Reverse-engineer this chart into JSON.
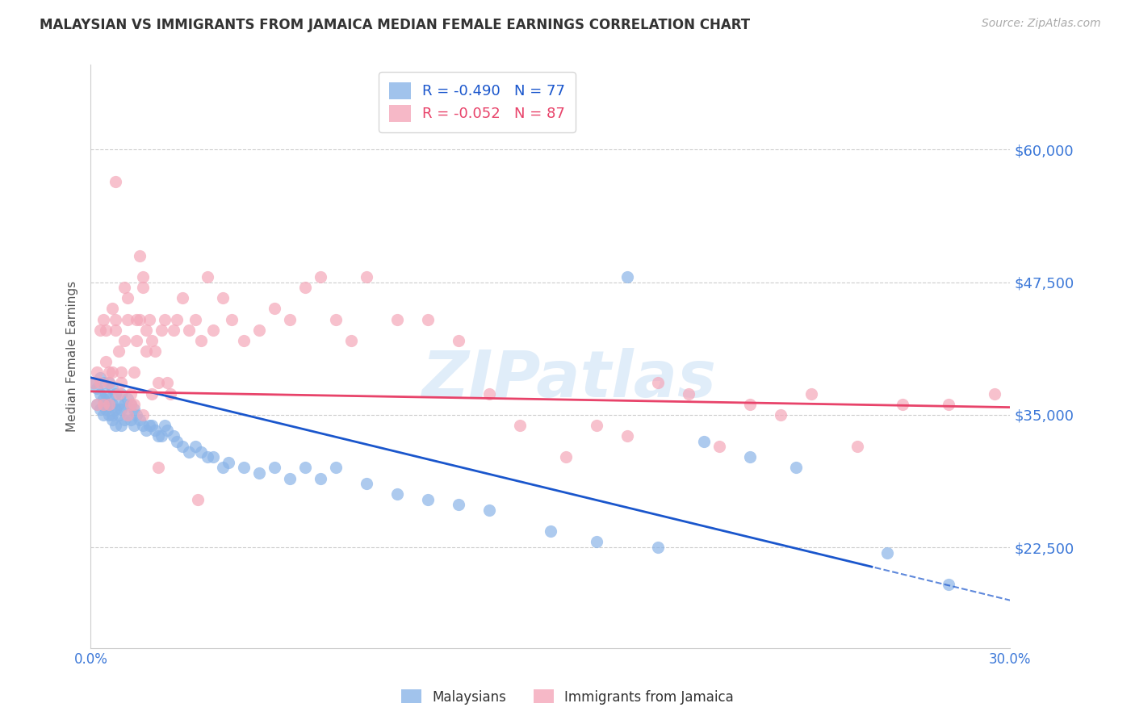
{
  "title": "MALAYSIAN VS IMMIGRANTS FROM JAMAICA MEDIAN FEMALE EARNINGS CORRELATION CHART",
  "source": "Source: ZipAtlas.com",
  "ylabel": "Median Female Earnings",
  "xlim": [
    0.0,
    0.3
  ],
  "ylim": [
    13000,
    68000
  ],
  "yticks": [
    22500,
    35000,
    47500,
    60000
  ],
  "ytick_labels": [
    "$22,500",
    "$35,000",
    "$47,500",
    "$60,000"
  ],
  "blue_color": "#8ab4e8",
  "pink_color": "#f4a7b9",
  "blue_line_color": "#1a56cc",
  "pink_line_color": "#e8436a",
  "axis_label_color": "#3c78d8",
  "tick_label_color": "#3c78d8",
  "legend_blue_R": "R = -0.490",
  "legend_blue_N": "N = 77",
  "legend_pink_R": "R = -0.052",
  "legend_pink_N": "N = 87",
  "blue_scatter_x": [
    0.001,
    0.002,
    0.002,
    0.003,
    0.003,
    0.003,
    0.004,
    0.004,
    0.004,
    0.005,
    0.005,
    0.005,
    0.006,
    0.006,
    0.006,
    0.007,
    0.007,
    0.007,
    0.007,
    0.008,
    0.008,
    0.008,
    0.009,
    0.009,
    0.01,
    0.01,
    0.01,
    0.011,
    0.011,
    0.012,
    0.012,
    0.013,
    0.013,
    0.014,
    0.014,
    0.015,
    0.016,
    0.017,
    0.018,
    0.019,
    0.02,
    0.021,
    0.022,
    0.023,
    0.024,
    0.025,
    0.027,
    0.028,
    0.03,
    0.032,
    0.034,
    0.036,
    0.038,
    0.04,
    0.043,
    0.045,
    0.05,
    0.055,
    0.06,
    0.065,
    0.07,
    0.075,
    0.08,
    0.09,
    0.1,
    0.11,
    0.12,
    0.13,
    0.15,
    0.165,
    0.185,
    0.2,
    0.215,
    0.23,
    0.26,
    0.175,
    0.28
  ],
  "blue_scatter_y": [
    38000,
    37500,
    36000,
    38500,
    37000,
    35500,
    36500,
    35000,
    38000,
    37000,
    36000,
    35500,
    38000,
    36500,
    35000,
    37500,
    36000,
    35000,
    34500,
    37000,
    35500,
    34000,
    36000,
    35000,
    37000,
    35500,
    34000,
    36000,
    34500,
    36500,
    35000,
    36000,
    34500,
    35500,
    34000,
    35000,
    34500,
    34000,
    33500,
    34000,
    34000,
    33500,
    33000,
    33000,
    34000,
    33500,
    33000,
    32500,
    32000,
    31500,
    32000,
    31500,
    31000,
    31000,
    30000,
    30500,
    30000,
    29500,
    30000,
    29000,
    30000,
    29000,
    30000,
    28500,
    27500,
    27000,
    26500,
    26000,
    24000,
    23000,
    22500,
    32500,
    31000,
    30000,
    22000,
    48000,
    19000
  ],
  "pink_scatter_x": [
    0.001,
    0.002,
    0.002,
    0.003,
    0.003,
    0.004,
    0.004,
    0.005,
    0.005,
    0.006,
    0.006,
    0.006,
    0.007,
    0.007,
    0.008,
    0.008,
    0.009,
    0.009,
    0.01,
    0.01,
    0.011,
    0.011,
    0.012,
    0.012,
    0.013,
    0.013,
    0.014,
    0.014,
    0.015,
    0.015,
    0.016,
    0.016,
    0.017,
    0.017,
    0.018,
    0.018,
    0.019,
    0.02,
    0.021,
    0.022,
    0.023,
    0.024,
    0.025,
    0.026,
    0.027,
    0.028,
    0.03,
    0.032,
    0.034,
    0.036,
    0.038,
    0.04,
    0.043,
    0.046,
    0.05,
    0.055,
    0.06,
    0.065,
    0.07,
    0.075,
    0.08,
    0.085,
    0.09,
    0.1,
    0.11,
    0.12,
    0.13,
    0.14,
    0.155,
    0.165,
    0.175,
    0.185,
    0.195,
    0.205,
    0.215,
    0.225,
    0.235,
    0.25,
    0.265,
    0.28,
    0.295,
    0.017,
    0.022,
    0.035,
    0.02,
    0.012,
    0.008
  ],
  "pink_scatter_y": [
    38000,
    39000,
    36000,
    43000,
    38000,
    44000,
    36000,
    43000,
    40000,
    39000,
    38000,
    36000,
    45000,
    39000,
    43000,
    44000,
    37000,
    41000,
    38000,
    39000,
    47000,
    42000,
    44000,
    46000,
    37000,
    36000,
    36000,
    39000,
    44000,
    42000,
    50000,
    44000,
    47000,
    48000,
    43000,
    41000,
    44000,
    42000,
    41000,
    38000,
    43000,
    44000,
    38000,
    37000,
    43000,
    44000,
    46000,
    43000,
    44000,
    42000,
    48000,
    43000,
    46000,
    44000,
    42000,
    43000,
    45000,
    44000,
    47000,
    48000,
    44000,
    42000,
    48000,
    44000,
    44000,
    42000,
    37000,
    34000,
    31000,
    34000,
    33000,
    38000,
    37000,
    32000,
    36000,
    35000,
    37000,
    32000,
    36000,
    36000,
    37000,
    35000,
    30000,
    27000,
    37000,
    35000,
    57000
  ],
  "blue_line_intercept": 38500,
  "blue_line_slope": -70000,
  "pink_line_intercept": 37200,
  "pink_line_slope": -5000,
  "watermark": "ZIPatlas",
  "background_color": "#ffffff",
  "grid_color": "#cccccc"
}
